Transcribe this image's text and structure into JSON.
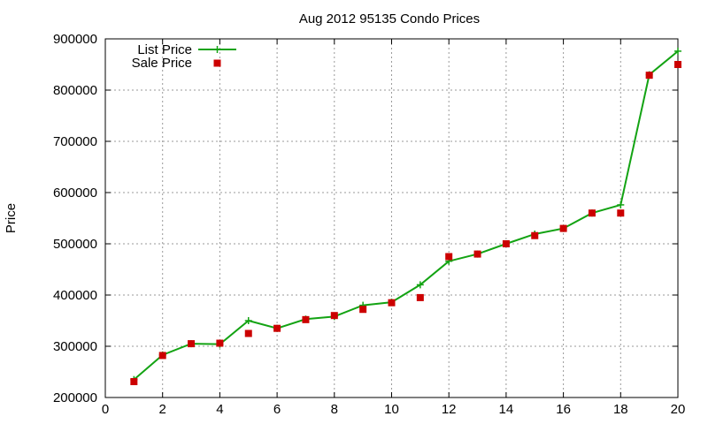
{
  "chart_data": {
    "type": "line",
    "title": "Aug 2012 95135 Condo Prices",
    "xlabel": "",
    "ylabel": "Price",
    "xlim": [
      0,
      20
    ],
    "ylim": [
      200000,
      900000
    ],
    "x_ticks": [
      0,
      2,
      4,
      6,
      8,
      10,
      12,
      14,
      16,
      18,
      20
    ],
    "y_ticks": [
      200000,
      300000,
      400000,
      500000,
      600000,
      700000,
      800000,
      900000
    ],
    "grid": true,
    "legend_position": "top-left",
    "series": [
      {
        "name": "List Price",
        "style": "line-with-plus-markers",
        "color": "#13a313",
        "x": [
          1,
          2,
          3,
          4,
          5,
          6,
          7,
          8,
          9,
          10,
          11,
          12,
          13,
          14,
          15,
          16,
          17,
          18,
          19,
          20
        ],
        "values": [
          235000,
          283000,
          305000,
          304000,
          350000,
          335000,
          353000,
          358000,
          380000,
          386000,
          420000,
          466000,
          480000,
          500000,
          519000,
          530000,
          560000,
          576000,
          830000,
          876000
        ]
      },
      {
        "name": "Sale Price",
        "style": "square-markers",
        "color": "#cc0000",
        "x": [
          1,
          2,
          3,
          4,
          5,
          6,
          7,
          8,
          9,
          10,
          11,
          12,
          13,
          14,
          15,
          16,
          17,
          18,
          19,
          20
        ],
        "values": [
          231000,
          282000,
          305000,
          306000,
          325000,
          335000,
          352000,
          360000,
          372000,
          385000,
          395000,
          475000,
          480000,
          500000,
          516000,
          530000,
          560000,
          560000,
          829000,
          850000
        ]
      }
    ]
  }
}
